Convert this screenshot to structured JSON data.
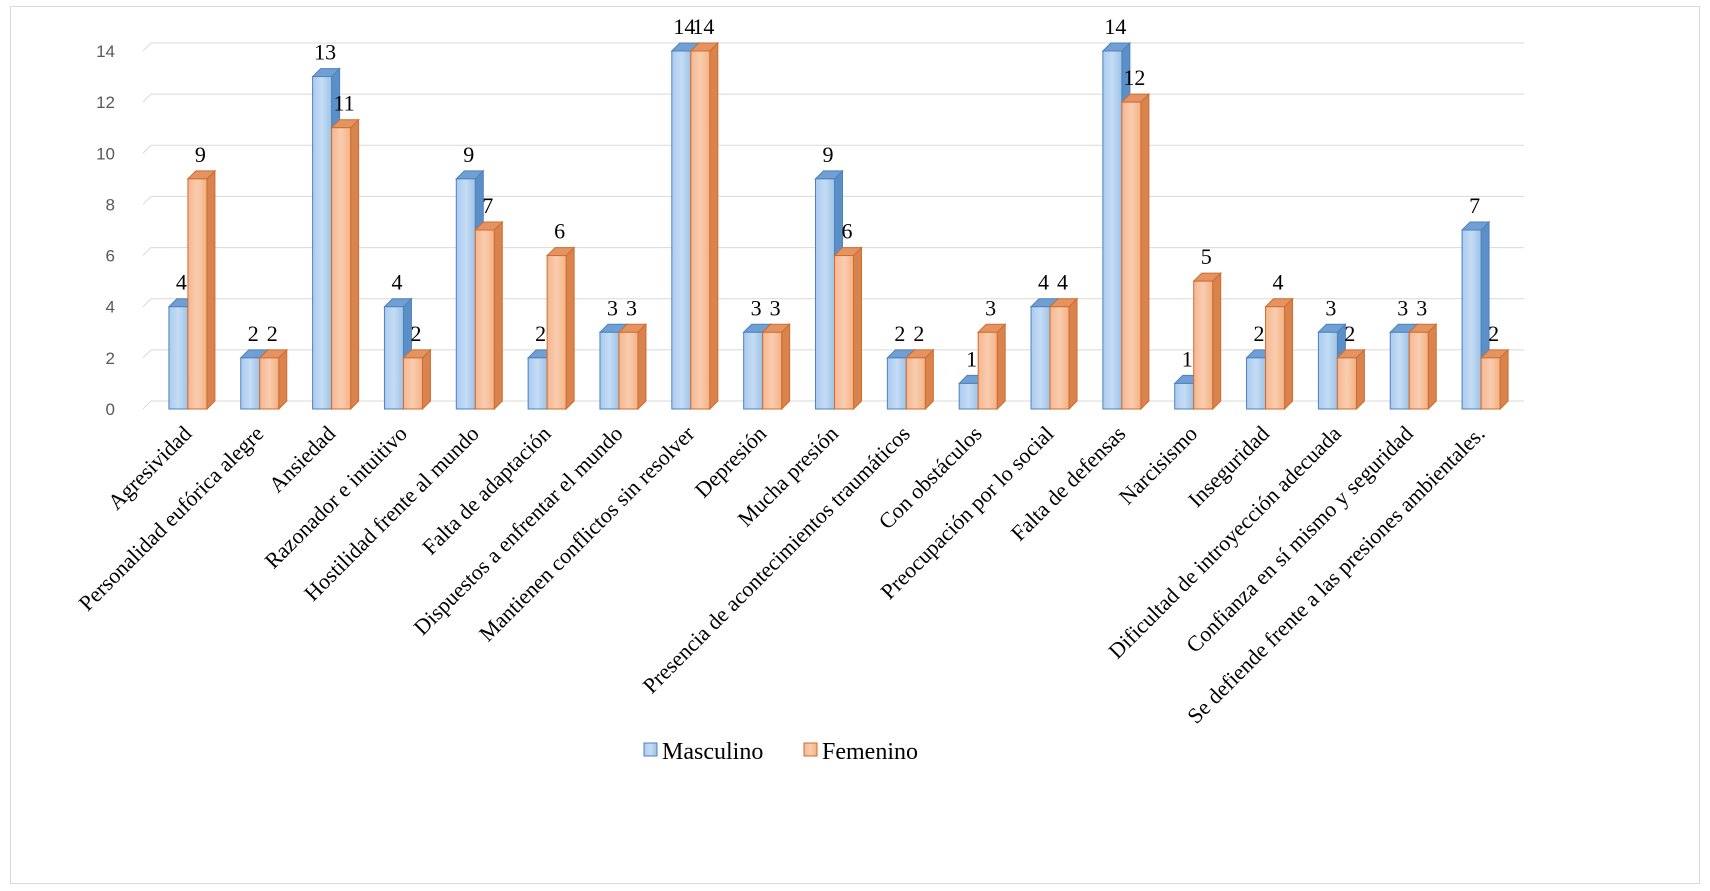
{
  "chart_data": {
    "type": "bar",
    "title": "",
    "xlabel": "",
    "ylabel": "",
    "ylim": [
      0,
      14
    ],
    "yticks": [
      0,
      2,
      4,
      6,
      8,
      10,
      12,
      14
    ],
    "grid": true,
    "legend_position": "bottom",
    "categories": [
      "Agresividad",
      "Personalidad eufórica alegre",
      "Ansiedad",
      "Razonador e intuitivo",
      "Hostilidad frente al mundo",
      "Falta de adaptación",
      "Dispuestos a enfrentar el mundo",
      "Mantienen conflictos sin resolver",
      "Depresión",
      "Mucha presión",
      "Presencia de acontecimientos traumáticos",
      "Con obstáculos",
      "Preocupación por lo social",
      "Falta de defensas",
      "Narcisismo",
      "Inseguridad",
      "Dificultad de introyección adecuada",
      "Confianza en sí mismo y seguridad",
      "Se defiende frente a las presiones ambientales."
    ],
    "series": [
      {
        "name": "Masculino",
        "color": "#9dc3e6",
        "values": [
          4,
          2,
          13,
          4,
          9,
          2,
          3,
          14,
          3,
          9,
          2,
          1,
          4,
          14,
          1,
          2,
          3,
          3,
          7
        ]
      },
      {
        "name": "Femenino",
        "color": "#f4b183",
        "values": [
          9,
          2,
          11,
          2,
          7,
          6,
          3,
          14,
          3,
          6,
          2,
          3,
          4,
          12,
          5,
          4,
          2,
          3,
          2
        ]
      }
    ]
  }
}
